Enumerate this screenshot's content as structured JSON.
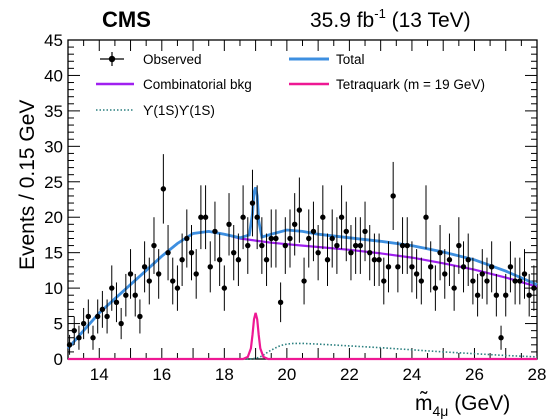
{
  "header": {
    "experiment": "CMS",
    "luminosity": "35.9 fb",
    "lumi_exponent": "-1",
    "energy": " (13 TeV)"
  },
  "chart_data": {
    "type": "scatter",
    "xlabel_base": "m̃",
    "xlabel_sub": "4μ",
    "xlabel_unit": " (GeV)",
    "ylabel": "Events / 0.15 GeV",
    "xlim": [
      13,
      28
    ],
    "ylim": [
      0,
      45
    ],
    "x_ticks": [
      14,
      16,
      18,
      20,
      22,
      24,
      26,
      28
    ],
    "y_ticks": [
      0,
      5,
      10,
      15,
      20,
      25,
      30,
      35,
      40,
      45
    ],
    "legend": {
      "observed": "Observed",
      "total": "Total",
      "combinatorial": "Combinatorial bkg",
      "tetraquark": "Tetraquark (m = 19 GeV)",
      "upsilon": "ϒ(1S)ϒ(1S)"
    },
    "colors": {
      "total": "#3d8fe0",
      "combinatorial": "#a020f0",
      "tetraquark": "#ee1893",
      "upsilon": "#2a7f7f",
      "observed": "#000000"
    },
    "observed": {
      "x": [
        13.05,
        13.2,
        13.35,
        13.5,
        13.65,
        13.8,
        13.95,
        14.1,
        14.25,
        14.4,
        14.55,
        14.7,
        14.85,
        15.0,
        15.15,
        15.3,
        15.45,
        15.6,
        15.75,
        15.9,
        16.05,
        16.2,
        16.35,
        16.5,
        16.65,
        16.8,
        16.95,
        17.1,
        17.25,
        17.4,
        17.55,
        17.7,
        17.85,
        18.0,
        18.15,
        18.3,
        18.45,
        18.6,
        18.75,
        18.9,
        19.05,
        19.2,
        19.35,
        19.5,
        19.65,
        19.8,
        19.95,
        20.1,
        20.25,
        20.4,
        20.55,
        20.7,
        20.85,
        21.0,
        21.15,
        21.3,
        21.45,
        21.6,
        21.75,
        21.9,
        22.05,
        22.2,
        22.35,
        22.5,
        22.65,
        22.8,
        22.95,
        23.1,
        23.25,
        23.4,
        23.55,
        23.7,
        23.85,
        24.0,
        24.15,
        24.3,
        24.45,
        24.6,
        24.75,
        24.9,
        25.05,
        25.2,
        25.35,
        25.5,
        25.65,
        25.8,
        25.95,
        26.1,
        26.25,
        26.4,
        26.55,
        26.7,
        26.85,
        27.0,
        27.15,
        27.3,
        27.45,
        27.6,
        27.75,
        27.9
      ],
      "y": [
        2,
        4,
        3,
        5,
        6,
        3,
        6,
        7,
        6,
        10,
        8,
        5,
        9,
        12,
        9,
        6,
        13,
        11,
        16,
        12,
        24,
        15,
        11,
        10,
        14,
        17,
        15,
        12,
        20,
        20,
        13,
        18,
        14,
        10,
        19,
        15,
        14,
        20,
        16,
        22,
        20,
        16,
        14,
        17,
        17,
        8,
        16,
        17,
        19,
        21,
        11,
        17,
        18,
        15,
        20,
        14,
        17,
        16,
        20,
        18,
        15,
        16,
        16,
        18,
        15,
        14,
        14,
        11,
        13,
        23,
        13,
        16,
        16,
        13,
        12,
        11,
        20,
        13,
        10,
        15,
        12,
        14,
        10,
        16,
        13,
        14,
        11,
        9,
        12,
        11,
        13,
        9,
        3,
        9,
        13,
        11,
        11,
        12,
        9,
        10
      ],
      "err": [
        1.4,
        2.0,
        1.7,
        2.2,
        2.4,
        1.7,
        2.4,
        2.6,
        2.4,
        3.2,
        2.8,
        2.2,
        3.0,
        3.5,
        3.0,
        2.4,
        3.6,
        3.3,
        4.0,
        3.5,
        4.9,
        3.9,
        3.3,
        3.2,
        3.7,
        4.1,
        3.9,
        3.5,
        4.5,
        4.5,
        3.6,
        4.2,
        3.7,
        3.2,
        4.4,
        3.9,
        3.7,
        4.5,
        4.0,
        4.7,
        4.5,
        4.0,
        3.7,
        4.1,
        4.1,
        2.8,
        4.0,
        4.1,
        4.4,
        4.6,
        3.3,
        4.1,
        4.2,
        3.9,
        4.5,
        3.7,
        4.1,
        4.0,
        4.5,
        4.2,
        3.9,
        4.0,
        4.0,
        4.2,
        3.9,
        3.7,
        3.7,
        3.3,
        3.6,
        4.8,
        3.6,
        4.0,
        4.0,
        3.6,
        3.5,
        3.3,
        4.5,
        3.6,
        3.2,
        3.9,
        3.5,
        3.7,
        3.2,
        4.0,
        3.6,
        3.7,
        3.3,
        3.0,
        3.5,
        3.3,
        3.6,
        3.0,
        1.7,
        3.0,
        3.6,
        3.3,
        3.3,
        3.5,
        3.0,
        3.2
      ]
    },
    "combinatorial": {
      "x": [
        13.0,
        13.5,
        14.0,
        14.5,
        15.0,
        15.5,
        16.0,
        16.5,
        17.0,
        17.5,
        18.0,
        18.5,
        19.0,
        19.5,
        20.0,
        20.5,
        21.0,
        22.0,
        23.0,
        24.0,
        25.0,
        26.0,
        27.0,
        28.0
      ],
      "y": [
        1.5,
        4.0,
        6.5,
        8.5,
        10.5,
        12.5,
        14.5,
        16.3,
        17.7,
        18.0,
        17.6,
        17.0,
        16.7,
        16.4,
        16.2,
        16.0,
        15.8,
        15.4,
        14.9,
        14.3,
        13.5,
        12.6,
        11.5,
        10.2
      ]
    },
    "total": {
      "x": [
        13.0,
        13.5,
        14.0,
        14.5,
        15.0,
        15.5,
        16.0,
        16.5,
        17.0,
        17.5,
        18.0,
        18.5,
        18.8,
        18.9,
        18.95,
        19.0,
        19.05,
        19.1,
        19.2,
        19.5,
        20.0,
        20.5,
        21.0,
        22.0,
        23.0,
        24.0,
        25.0,
        26.0,
        27.0,
        28.0
      ],
      "y": [
        1.5,
        4.0,
        6.5,
        8.5,
        10.5,
        12.5,
        14.5,
        16.3,
        17.7,
        18.0,
        17.6,
        17.1,
        17.5,
        20.5,
        23.5,
        24.2,
        23.0,
        19.5,
        17.2,
        17.6,
        18.2,
        18.0,
        17.6,
        17.1,
        16.6,
        16.0,
        15.1,
        14.0,
        12.4,
        10.5
      ]
    },
    "tetraquark": {
      "x": [
        13.0,
        18.6,
        18.75,
        18.85,
        18.9,
        18.95,
        19.0,
        19.05,
        19.1,
        19.15,
        19.25,
        19.4,
        28.0
      ],
      "y": [
        0,
        0,
        0.3,
        1.5,
        3.4,
        5.6,
        6.5,
        5.6,
        3.4,
        1.5,
        0.3,
        0,
        0
      ]
    },
    "upsilon": {
      "x": [
        13.0,
        18.8,
        19.0,
        19.2,
        19.4,
        19.6,
        19.8,
        20.0,
        20.2,
        20.5,
        21.0,
        22.0,
        23.0,
        24.0,
        25.0,
        26.0,
        27.0,
        28.0
      ],
      "y": [
        0,
        0,
        0.08,
        0.4,
        1.0,
        1.5,
        1.9,
        2.1,
        2.2,
        2.2,
        2.1,
        1.85,
        1.6,
        1.3,
        1.0,
        0.75,
        0.5,
        0.3
      ]
    }
  }
}
